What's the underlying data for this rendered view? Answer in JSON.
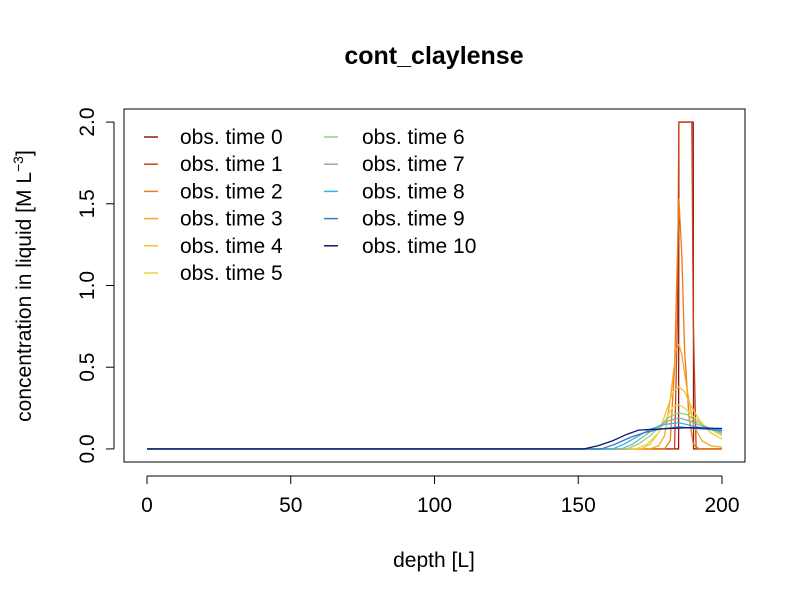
{
  "chart_data": {
    "type": "line",
    "title": "cont_claylense",
    "xlabel": "depth [L]",
    "ylabel": "concentration in liquid [M L",
    "ylabel_superscript": "−3",
    "ylabel_close": "]",
    "xlim": [
      -8,
      208
    ],
    "ylim": [
      -0.08,
      2.08
    ],
    "xticks": [
      0,
      50,
      100,
      150,
      200
    ],
    "xtick_labels": [
      "0",
      "50",
      "100",
      "150",
      "200"
    ],
    "yticks": [
      0.0,
      0.5,
      1.0,
      1.5,
      2.0
    ],
    "ytick_labels": [
      "0.0",
      "0.5",
      "1.0",
      "1.5",
      "2.0"
    ],
    "grid": false,
    "legend_position": "top-left",
    "series": [
      {
        "name": "obs. time 0",
        "color": "#8b1a1a",
        "x": [
          0,
          184.9,
          185,
          190,
          190.1,
          200
        ],
        "y": [
          0,
          0,
          2.0,
          2.0,
          0,
          0
        ]
      },
      {
        "name": "obs. time 1",
        "color": "#d0421b",
        "x": [
          0,
          183.5,
          184.5,
          185,
          189.5,
          190,
          191,
          200
        ],
        "y": [
          0,
          0,
          0.8,
          2.0,
          2.0,
          0.8,
          0,
          0
        ]
      },
      {
        "name": "obs. time 2",
        "color": "#f07b12",
        "x": [
          0,
          180,
          182,
          183.5,
          185,
          186,
          187,
          188.5,
          190,
          192,
          195,
          200
        ],
        "y": [
          0,
          0,
          0.05,
          0.5,
          1.53,
          1.2,
          0.6,
          0.2,
          0.03,
          0,
          0,
          0
        ]
      },
      {
        "name": "obs. time 3",
        "color": "#f5a623",
        "x": [
          0,
          175,
          178,
          180,
          182,
          184,
          185,
          186,
          188,
          190,
          193,
          196,
          200
        ],
        "y": [
          0,
          0,
          0.02,
          0.08,
          0.3,
          0.6,
          0.64,
          0.58,
          0.35,
          0.15,
          0.05,
          0.02,
          0.01
        ]
      },
      {
        "name": "obs. time 4",
        "color": "#f4c430",
        "x": [
          0,
          172,
          175,
          178,
          181,
          183,
          185,
          187,
          189,
          192,
          196,
          200
        ],
        "y": [
          0,
          0,
          0.03,
          0.1,
          0.25,
          0.35,
          0.38,
          0.35,
          0.27,
          0.18,
          0.1,
          0.06
        ]
      },
      {
        "name": "obs. time 5",
        "color": "#e6d84a",
        "x": [
          0,
          170,
          174,
          178,
          181,
          183,
          185,
          187,
          190,
          194,
          200
        ],
        "y": [
          0,
          0,
          0.03,
          0.1,
          0.2,
          0.26,
          0.27,
          0.25,
          0.2,
          0.14,
          0.08
        ]
      },
      {
        "name": "obs. time 6",
        "color": "#8fd37a",
        "x": [
          0,
          167,
          171,
          175,
          179,
          182,
          185,
          188,
          191,
          195,
          200
        ],
        "y": [
          0,
          0,
          0.03,
          0.08,
          0.15,
          0.2,
          0.22,
          0.21,
          0.17,
          0.13,
          0.09
        ]
      },
      {
        "name": "obs. time 7",
        "color": "#8fa8b0",
        "x": [
          0,
          165,
          169,
          173,
          177,
          181,
          185,
          189,
          193,
          197,
          200
        ],
        "y": [
          0,
          0,
          0.03,
          0.08,
          0.13,
          0.17,
          0.19,
          0.17,
          0.14,
          0.12,
          0.1
        ]
      },
      {
        "name": "obs. time 8",
        "color": "#2db5f0",
        "x": [
          0,
          162,
          166,
          170,
          175,
          180,
          185,
          190,
          195,
          200
        ],
        "y": [
          0,
          0,
          0.03,
          0.07,
          0.12,
          0.15,
          0.16,
          0.14,
          0.12,
          0.11
        ]
      },
      {
        "name": "obs. time 9",
        "color": "#3a78c2",
        "x": [
          0,
          158,
          163,
          168,
          173,
          178,
          185,
          191,
          196,
          200
        ],
        "y": [
          0,
          0,
          0.03,
          0.07,
          0.1,
          0.12,
          0.135,
          0.125,
          0.12,
          0.115
        ]
      },
      {
        "name": "obs. time 10",
        "color": "#0b1a6e",
        "x": [
          0,
          152,
          157,
          162,
          167,
          171,
          176,
          182,
          188,
          194,
          200
        ],
        "y": [
          0,
          0,
          0.02,
          0.05,
          0.09,
          0.115,
          0.12,
          0.125,
          0.13,
          0.128,
          0.125
        ]
      }
    ]
  }
}
